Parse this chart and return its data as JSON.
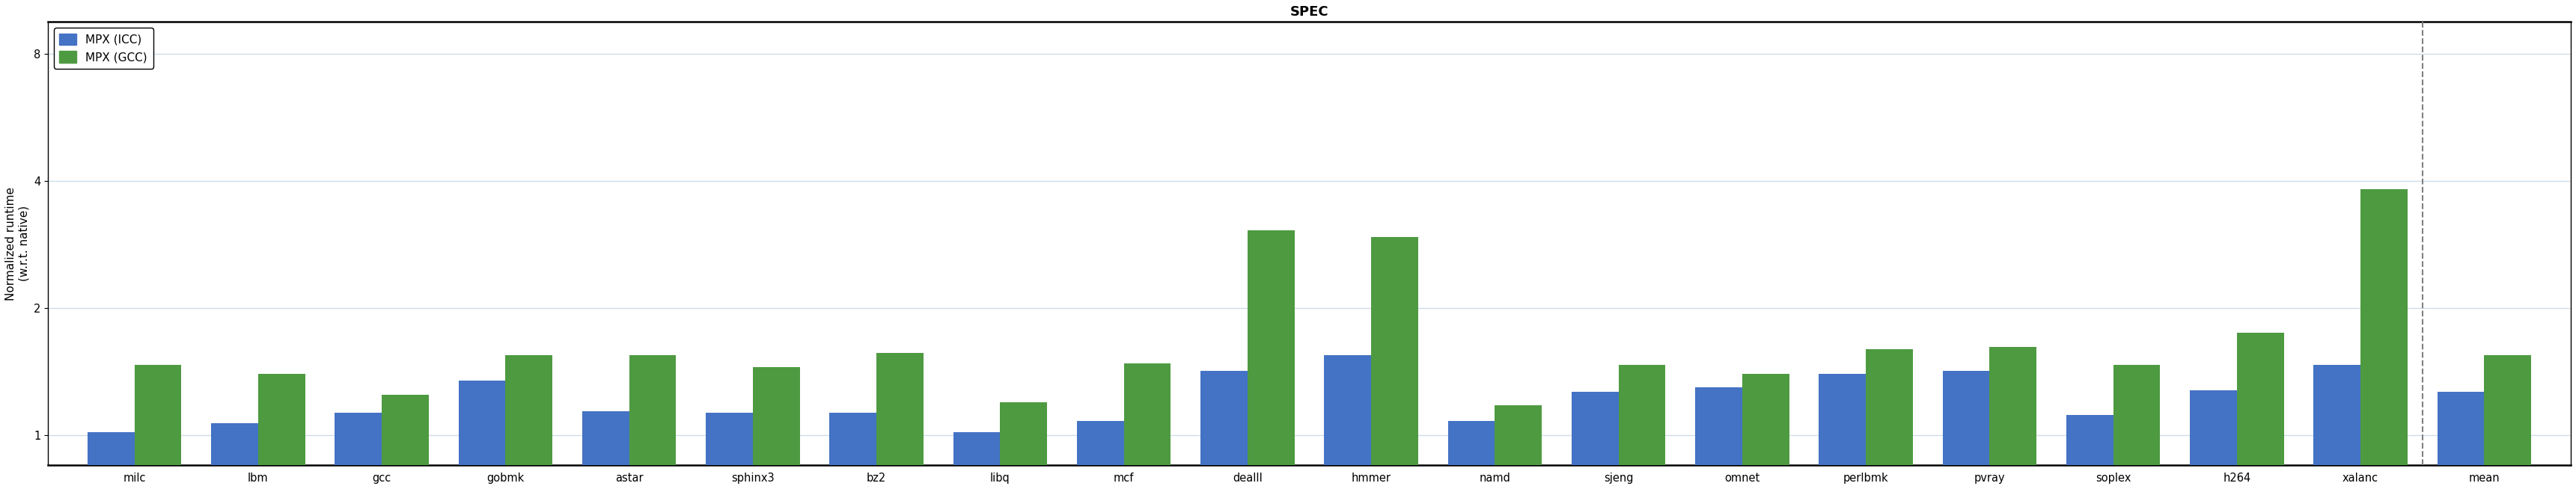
{
  "title": "SPEC",
  "ylabel": "Normalized runtime\n(w.r.t. native)",
  "categories": [
    "milc",
    "lbm",
    "gcc",
    "gobmk",
    "astar",
    "sphinx3",
    "bz2",
    "libq",
    "mcf",
    "dealII",
    "hmmer",
    "namd",
    "sjeng",
    "omnet",
    "perlbmk",
    "pvray",
    "soplex",
    "h264",
    "xalanc",
    "mean"
  ],
  "icc_values": [
    1.02,
    1.07,
    1.13,
    1.35,
    1.14,
    1.13,
    1.13,
    1.02,
    1.08,
    1.42,
    1.55,
    1.08,
    1.27,
    1.3,
    1.4,
    1.42,
    1.12,
    1.28,
    1.47,
    1.27
  ],
  "gcc_values": [
    1.47,
    1.4,
    1.25,
    1.55,
    1.55,
    1.45,
    1.57,
    1.2,
    1.48,
    3.05,
    2.95,
    1.18,
    1.47,
    1.4,
    1.6,
    1.62,
    1.47,
    1.75,
    3.82,
    1.55
  ],
  "icc_color": "#4472c4",
  "gcc_color": "#4e9a41",
  "ylim_log": [
    0.85,
    9.5
  ],
  "yticks": [
    1,
    2,
    4,
    8
  ],
  "bar_width": 0.38,
  "legend_labels": [
    "MPX (ICC)",
    "MPX (GCC)"
  ],
  "background_color": "#ffffff",
  "grid_color": "#cddde8",
  "title_fontsize": 13,
  "label_fontsize": 11,
  "tick_fontsize": 10.5
}
